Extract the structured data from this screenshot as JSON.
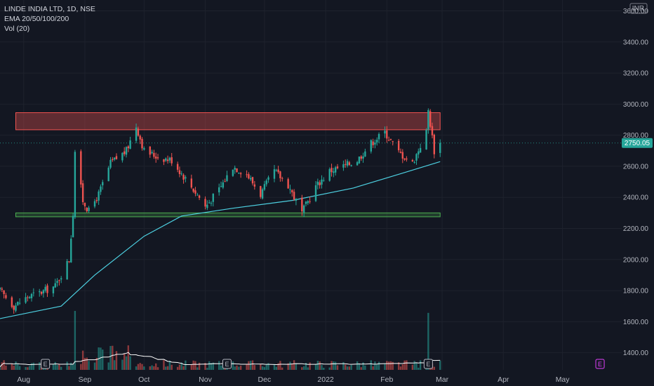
{
  "legend": {
    "symbol": "LINDE INDIA LTD, 1D, NSE",
    "ema": "EMA 20/50/100/200",
    "vol": "Vol (20)"
  },
  "axis": {
    "currency": "INR",
    "y_ticks": [
      "3600.00",
      "3400.00",
      "3200.00",
      "3000.00",
      "2800.00",
      "2600.00",
      "2400.00",
      "2200.00",
      "2000.00",
      "1800.00",
      "1600.00",
      "1400.00"
    ],
    "x_ticks": [
      "Aug",
      "Sep",
      "Oct",
      "Nov",
      "Dec",
      "2022",
      "Feb",
      "Mar",
      "Apr",
      "May"
    ]
  },
  "last_price": {
    "value": 2750.05,
    "label": "2750.05",
    "color": "#26a69a"
  },
  "events": [
    {
      "label": "E",
      "date": "2021-08-12",
      "color": "#b2b5be"
    },
    {
      "label": "E",
      "date": "2021-11-12",
      "color": "#b2b5be"
    },
    {
      "label": "E",
      "date": "2022-02-22",
      "color": "#b2b5be"
    },
    {
      "label": "E",
      "date": "2022-05-20",
      "color": "#e040fb"
    }
  ],
  "colors": {
    "background": "#131722",
    "up": "#26a69a",
    "down": "#ef5350",
    "ema": "#4dd0e1",
    "resistance_fill": "#ef5350",
    "support_fill": "#4caf50",
    "volume_ma": "#ffffff"
  },
  "chart_data": {
    "type": "candlestick",
    "title": "LINDE INDIA LTD, 1D, NSE",
    "xlabel": "",
    "ylabel": "",
    "x_range": [
      "2021-07-20",
      "2022-05-31"
    ],
    "ylim": [
      1290,
      3670
    ],
    "grid": true,
    "zones": [
      {
        "name": "resistance",
        "from": "2021-07-28",
        "to": "2022-02-28",
        "y_low": 2835,
        "y_high": 2945
      },
      {
        "name": "support",
        "from": "2021-07-28",
        "to": "2022-02-28",
        "y_low": 2275,
        "y_high": 2300
      }
    ],
    "keypoints": [
      {
        "date": "2021-07-20",
        "close": 1800
      },
      {
        "date": "2021-07-27",
        "close": 1700
      },
      {
        "date": "2021-08-03",
        "close": 1760
      },
      {
        "date": "2021-08-10",
        "close": 1790
      },
      {
        "date": "2021-08-17",
        "close": 1830
      },
      {
        "date": "2021-08-24",
        "close": 2000
      },
      {
        "date": "2021-08-26",
        "close": 2300
      },
      {
        "date": "2021-08-27",
        "close": 2700
      },
      {
        "date": "2021-08-31",
        "close": 2380
      },
      {
        "date": "2021-09-03",
        "close": 2310
      },
      {
        "date": "2021-09-08",
        "close": 2420
      },
      {
        "date": "2021-09-14",
        "close": 2620
      },
      {
        "date": "2021-09-22",
        "close": 2700
      },
      {
        "date": "2021-09-27",
        "close": 2860
      },
      {
        "date": "2021-10-01",
        "close": 2700
      },
      {
        "date": "2021-10-08",
        "close": 2660
      },
      {
        "date": "2021-10-15",
        "close": 2640
      },
      {
        "date": "2021-10-22",
        "close": 2520
      },
      {
        "date": "2021-10-29",
        "close": 2400
      },
      {
        "date": "2021-11-01",
        "close": 2340
      },
      {
        "date": "2021-11-08",
        "close": 2450
      },
      {
        "date": "2021-11-15",
        "close": 2600
      },
      {
        "date": "2021-11-22",
        "close": 2550
      },
      {
        "date": "2021-11-29",
        "close": 2420
      },
      {
        "date": "2021-12-06",
        "close": 2570
      },
      {
        "date": "2021-12-13",
        "close": 2480
      },
      {
        "date": "2021-12-20",
        "close": 2300
      },
      {
        "date": "2021-12-27",
        "close": 2470
      },
      {
        "date": "2022-01-03",
        "close": 2570
      },
      {
        "date": "2022-01-10",
        "close": 2600
      },
      {
        "date": "2022-01-17",
        "close": 2640
      },
      {
        "date": "2022-01-24",
        "close": 2750
      },
      {
        "date": "2022-01-31",
        "close": 2820
      },
      {
        "date": "2022-02-07",
        "close": 2690
      },
      {
        "date": "2022-02-14",
        "close": 2620
      },
      {
        "date": "2022-02-21",
        "close": 2820
      },
      {
        "date": "2022-02-22",
        "close": 2960
      },
      {
        "date": "2022-02-25",
        "close": 2700
      },
      {
        "date": "2022-02-28",
        "close": 2750.05
      }
    ],
    "ema_line": {
      "name": "EMA 200",
      "points": [
        {
          "date": "2021-07-20",
          "value": 1620
        },
        {
          "date": "2021-08-20",
          "value": 1700
        },
        {
          "date": "2021-09-06",
          "value": 1900
        },
        {
          "date": "2021-10-01",
          "value": 2150
        },
        {
          "date": "2021-10-20",
          "value": 2280
        },
        {
          "date": "2021-11-15",
          "value": 2330
        },
        {
          "date": "2021-12-15",
          "value": 2380
        },
        {
          "date": "2022-01-15",
          "value": 2460
        },
        {
          "date": "2022-02-10",
          "value": 2560
        },
        {
          "date": "2022-02-28",
          "value": 2630
        }
      ]
    },
    "volume_spikes": [
      {
        "date": "2021-08-27",
        "level": 0.6
      },
      {
        "date": "2021-08-30",
        "level": 0.95
      },
      {
        "date": "2021-08-31",
        "level": 0.4
      },
      {
        "date": "2022-02-22",
        "level": 0.58
      }
    ]
  }
}
